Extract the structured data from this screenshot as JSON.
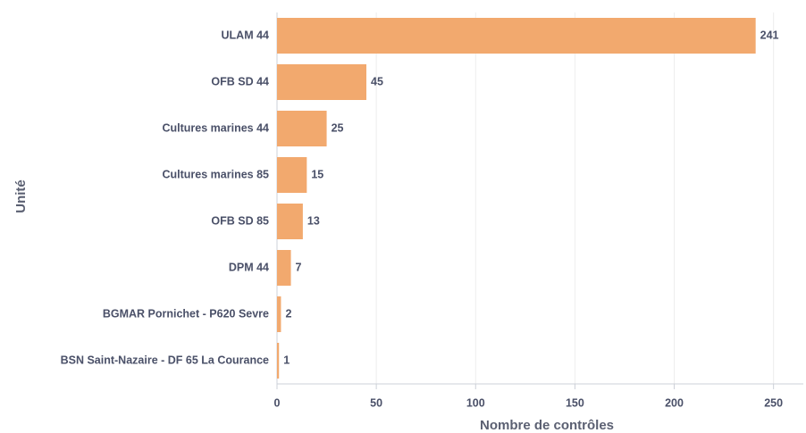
{
  "chart_data": {
    "type": "barh",
    "categories": [
      "ULAM 44",
      "OFB SD 44",
      "Cultures marines 44",
      "Cultures marines 85",
      "OFB SD 85",
      "DPM 44",
      "BGMAR Pornichet - P620 Sevre",
      "BSN Saint-Nazaire - DF 65 La Courance"
    ],
    "values": [
      241,
      45,
      25,
      15,
      13,
      7,
      2,
      1
    ],
    "color": "#f2a96e",
    "xlim": [
      0,
      265
    ],
    "xticks": [
      0,
      50,
      100,
      150,
      200,
      250
    ],
    "xlabel": "Nombre de contrôles",
    "ylabel": "Unité",
    "grid": true
  }
}
